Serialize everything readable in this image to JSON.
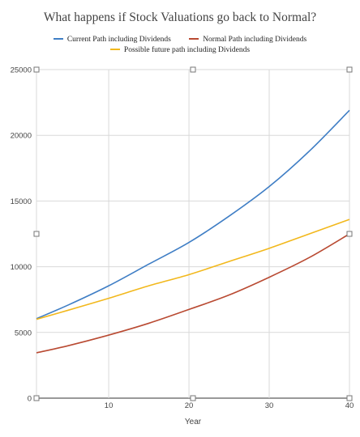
{
  "chart_data": {
    "type": "line",
    "title": "What happens if Stock Valuations go back to Normal?",
    "xlabel": "Year",
    "ylabel": "",
    "xlim": [
      1,
      40
    ],
    "ylim": [
      0,
      25000
    ],
    "xticks": [
      10,
      20,
      30,
      40
    ],
    "yticks": [
      0,
      5000,
      10000,
      15000,
      20000,
      25000
    ],
    "grid": true,
    "legend_position": "top",
    "x": [
      1,
      5,
      10,
      15,
      20,
      25,
      30,
      35,
      40
    ],
    "series": [
      {
        "name": "Current Path including Dividends",
        "color": "#3f7ec5",
        "values": [
          6050,
          7100,
          8550,
          10200,
          11850,
          13850,
          16100,
          18800,
          21900
        ]
      },
      {
        "name": "Normal Path including Dividends",
        "color": "#b94a32",
        "values": [
          3450,
          4000,
          4800,
          5700,
          6750,
          7850,
          9200,
          10700,
          12500
        ]
      },
      {
        "name": "Possible future path including Dividends",
        "color": "#f2b81c",
        "values": [
          6000,
          6700,
          7600,
          8550,
          9400,
          10400,
          11400,
          12500,
          13600
        ]
      }
    ]
  }
}
